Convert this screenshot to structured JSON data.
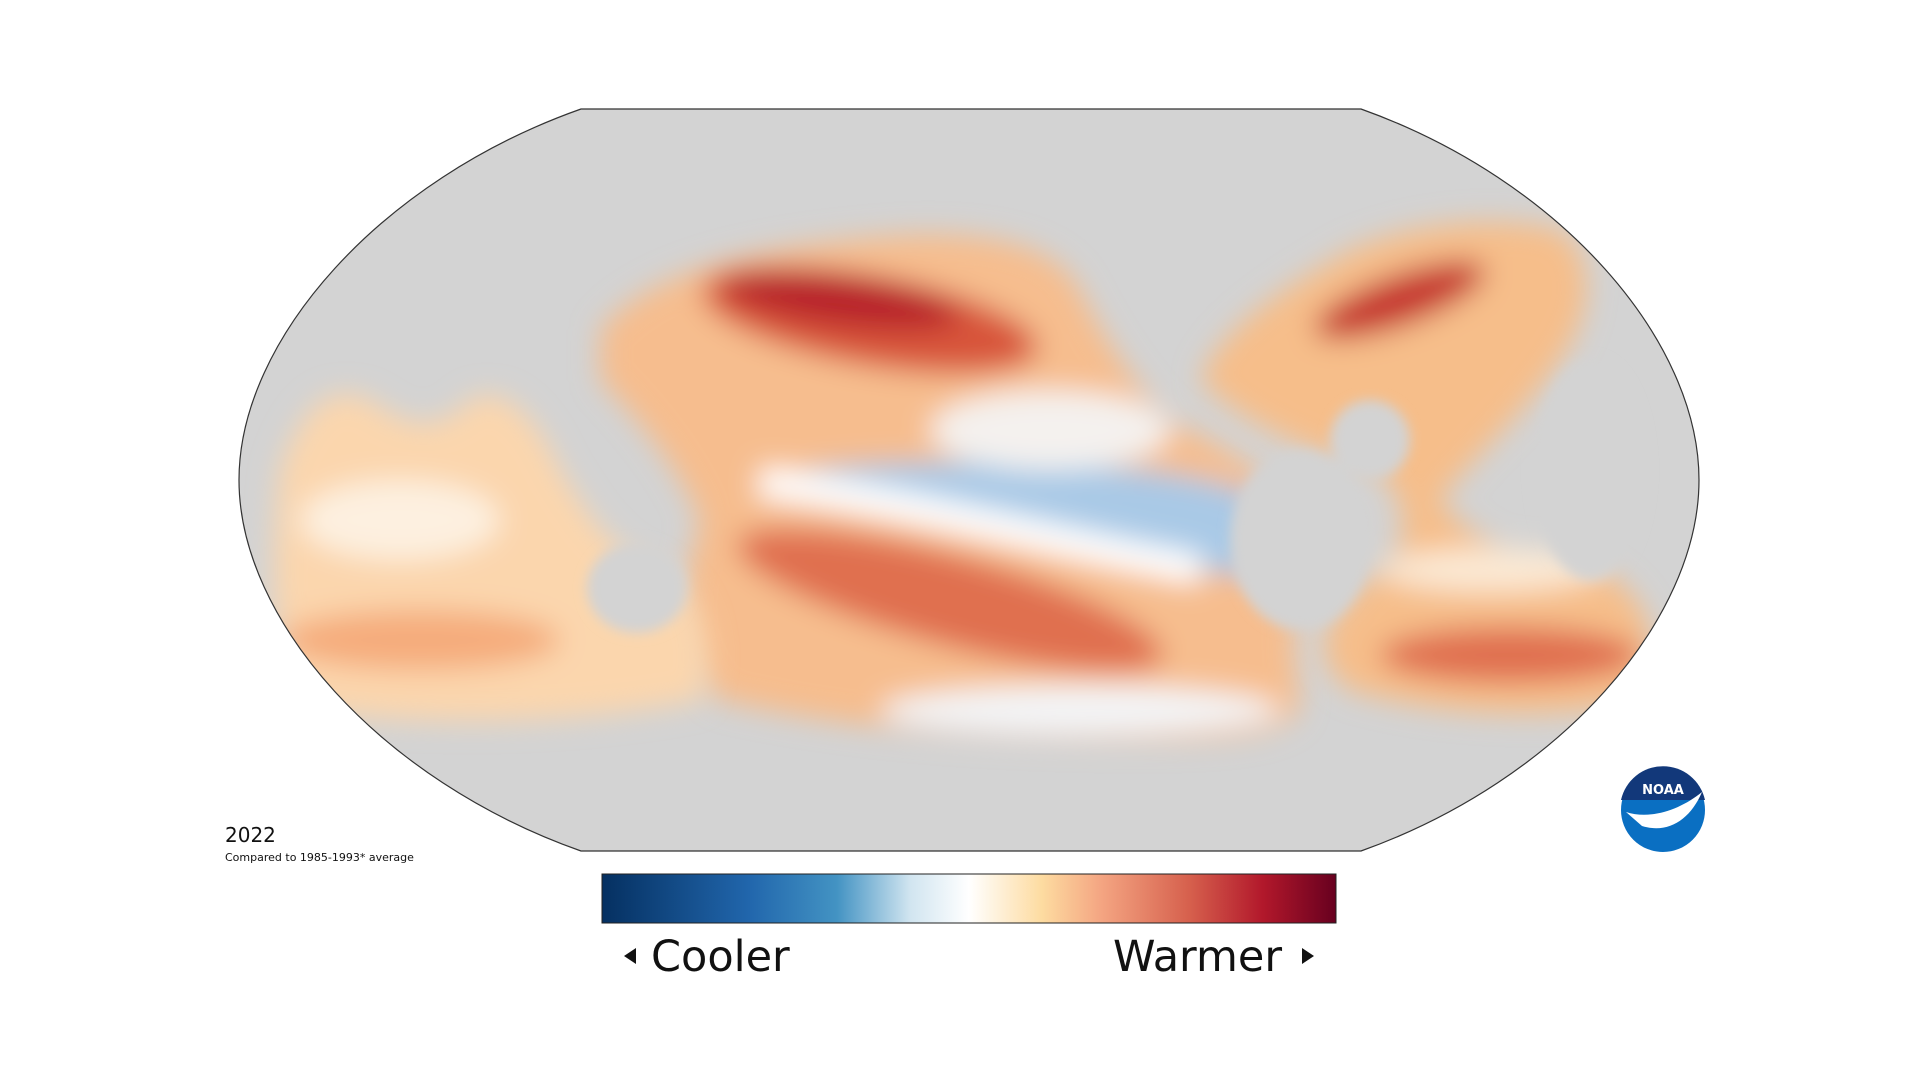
{
  "map": {
    "year": "2022",
    "subtitle": "Compared to 1985-1993* average"
  },
  "legend": {
    "low_label": "Cooler",
    "high_label": "Warmer"
  },
  "logo": {
    "text": "NOAA"
  }
}
